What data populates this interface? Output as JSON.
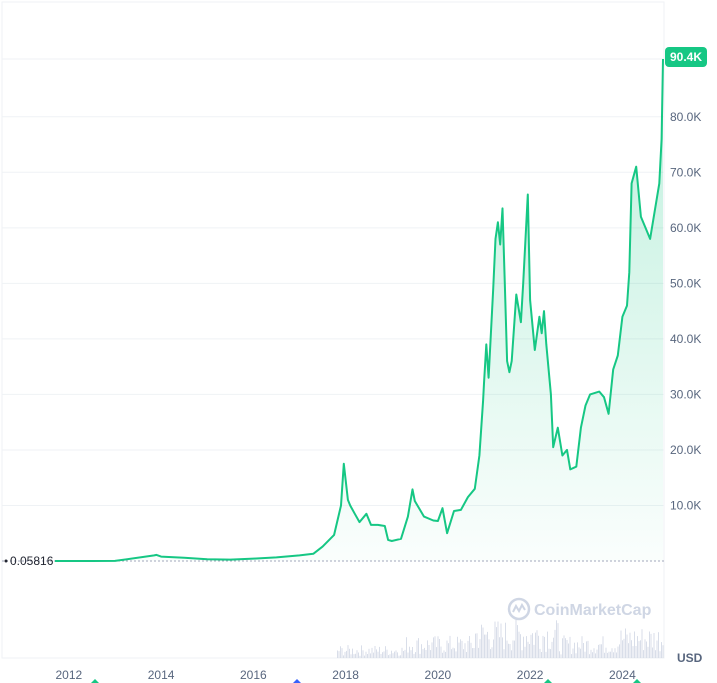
{
  "chart_data": {
    "type": "area",
    "series": [
      {
        "x": [
          2011.7,
          2012.5,
          2013.0,
          2013.85,
          2013.9,
          2014.0,
          2014.5,
          2015.0,
          2015.5,
          2016.0,
          2016.5,
          2017.0,
          2017.3,
          2017.5,
          2017.75,
          2017.9,
          2017.96,
          2018.05,
          2018.1,
          2018.2,
          2018.3,
          2018.45,
          2018.55,
          2018.7,
          2018.85,
          2018.92,
          2019.0,
          2019.2,
          2019.35,
          2019.45,
          2019.5,
          2019.7,
          2019.9,
          2020.0,
          2020.1,
          2020.2,
          2020.35,
          2020.5,
          2020.65,
          2020.8,
          2020.9,
          2020.98,
          2021.0,
          2021.05,
          2021.1,
          2021.2,
          2021.25,
          2021.3,
          2021.35,
          2021.4,
          2021.45,
          2021.5,
          2021.55,
          2021.6,
          2021.7,
          2021.8,
          2021.85,
          2021.9,
          2021.95,
          2022.0,
          2022.1,
          2022.2,
          2022.25,
          2022.3,
          2022.35,
          2022.45,
          2022.5,
          2022.6,
          2022.7,
          2022.8,
          2022.87,
          2022.95,
          2023.0,
          2023.1,
          2023.2,
          2023.3,
          2023.5,
          2023.6,
          2023.7,
          2023.8,
          2023.9,
          2024.0,
          2024.1,
          2024.15,
          2024.2,
          2024.3,
          2024.4,
          2024.5,
          2024.6,
          2024.7,
          2024.8,
          2024.85,
          2024.88
        ],
        "values": [
          0,
          5,
          13,
          1000,
          1100,
          800,
          600,
          300,
          250,
          430,
          650,
          1000,
          1300,
          2600,
          4700,
          10000,
          17500,
          11000,
          10000,
          8500,
          7000,
          8500,
          6500,
          6500,
          6300,
          3800,
          3600,
          4000,
          8000,
          12900,
          10800,
          8000,
          7300,
          7200,
          9500,
          5000,
          9000,
          9200,
          11500,
          13000,
          19000,
          28900,
          32000,
          39000,
          33000,
          49000,
          58000,
          61000,
          57000,
          63500,
          50000,
          36000,
          34000,
          36000,
          48000,
          43000,
          50000,
          58000,
          66000,
          47000,
          38000,
          44000,
          41000,
          45000,
          39000,
          30000,
          20500,
          24000,
          19000,
          20000,
          16500,
          16800,
          17000,
          24000,
          28000,
          30000,
          30500,
          29500,
          26500,
          34500,
          37000,
          44000,
          46000,
          52000,
          68000,
          71000,
          62000,
          60000,
          58000,
          63000,
          68000,
          76000,
          90400
        ]
      }
    ],
    "ytick_labels": [
      "10.0K",
      "20.0K",
      "30.0K",
      "40.0K",
      "50.0K",
      "60.0K",
      "70.0K",
      "80.0K"
    ],
    "ytick_values": [
      10000,
      20000,
      30000,
      40000,
      50000,
      60000,
      70000,
      80000
    ],
    "xtick_labels": [
      "2012",
      "2014",
      "2016",
      "2018",
      "2020",
      "2022",
      "2024"
    ],
    "xtick_values": [
      2012,
      2014,
      2016,
      2018,
      2020,
      2022,
      2024
    ],
    "current_value_label": "90.4K",
    "base_value_label": "0.05816",
    "currency_label": "USD",
    "watermark": "CoinMarketCap",
    "ylim": [
      0,
      90400
    ],
    "xlim": [
      2011.7,
      2024.88
    ],
    "grid": true,
    "colors": {
      "line": "#16c784",
      "area_top": "#16c784",
      "grid": "#eff2f5",
      "badge": "#16c784",
      "volume": "#cfd6e4",
      "base_line": "#a1a7bb"
    }
  }
}
